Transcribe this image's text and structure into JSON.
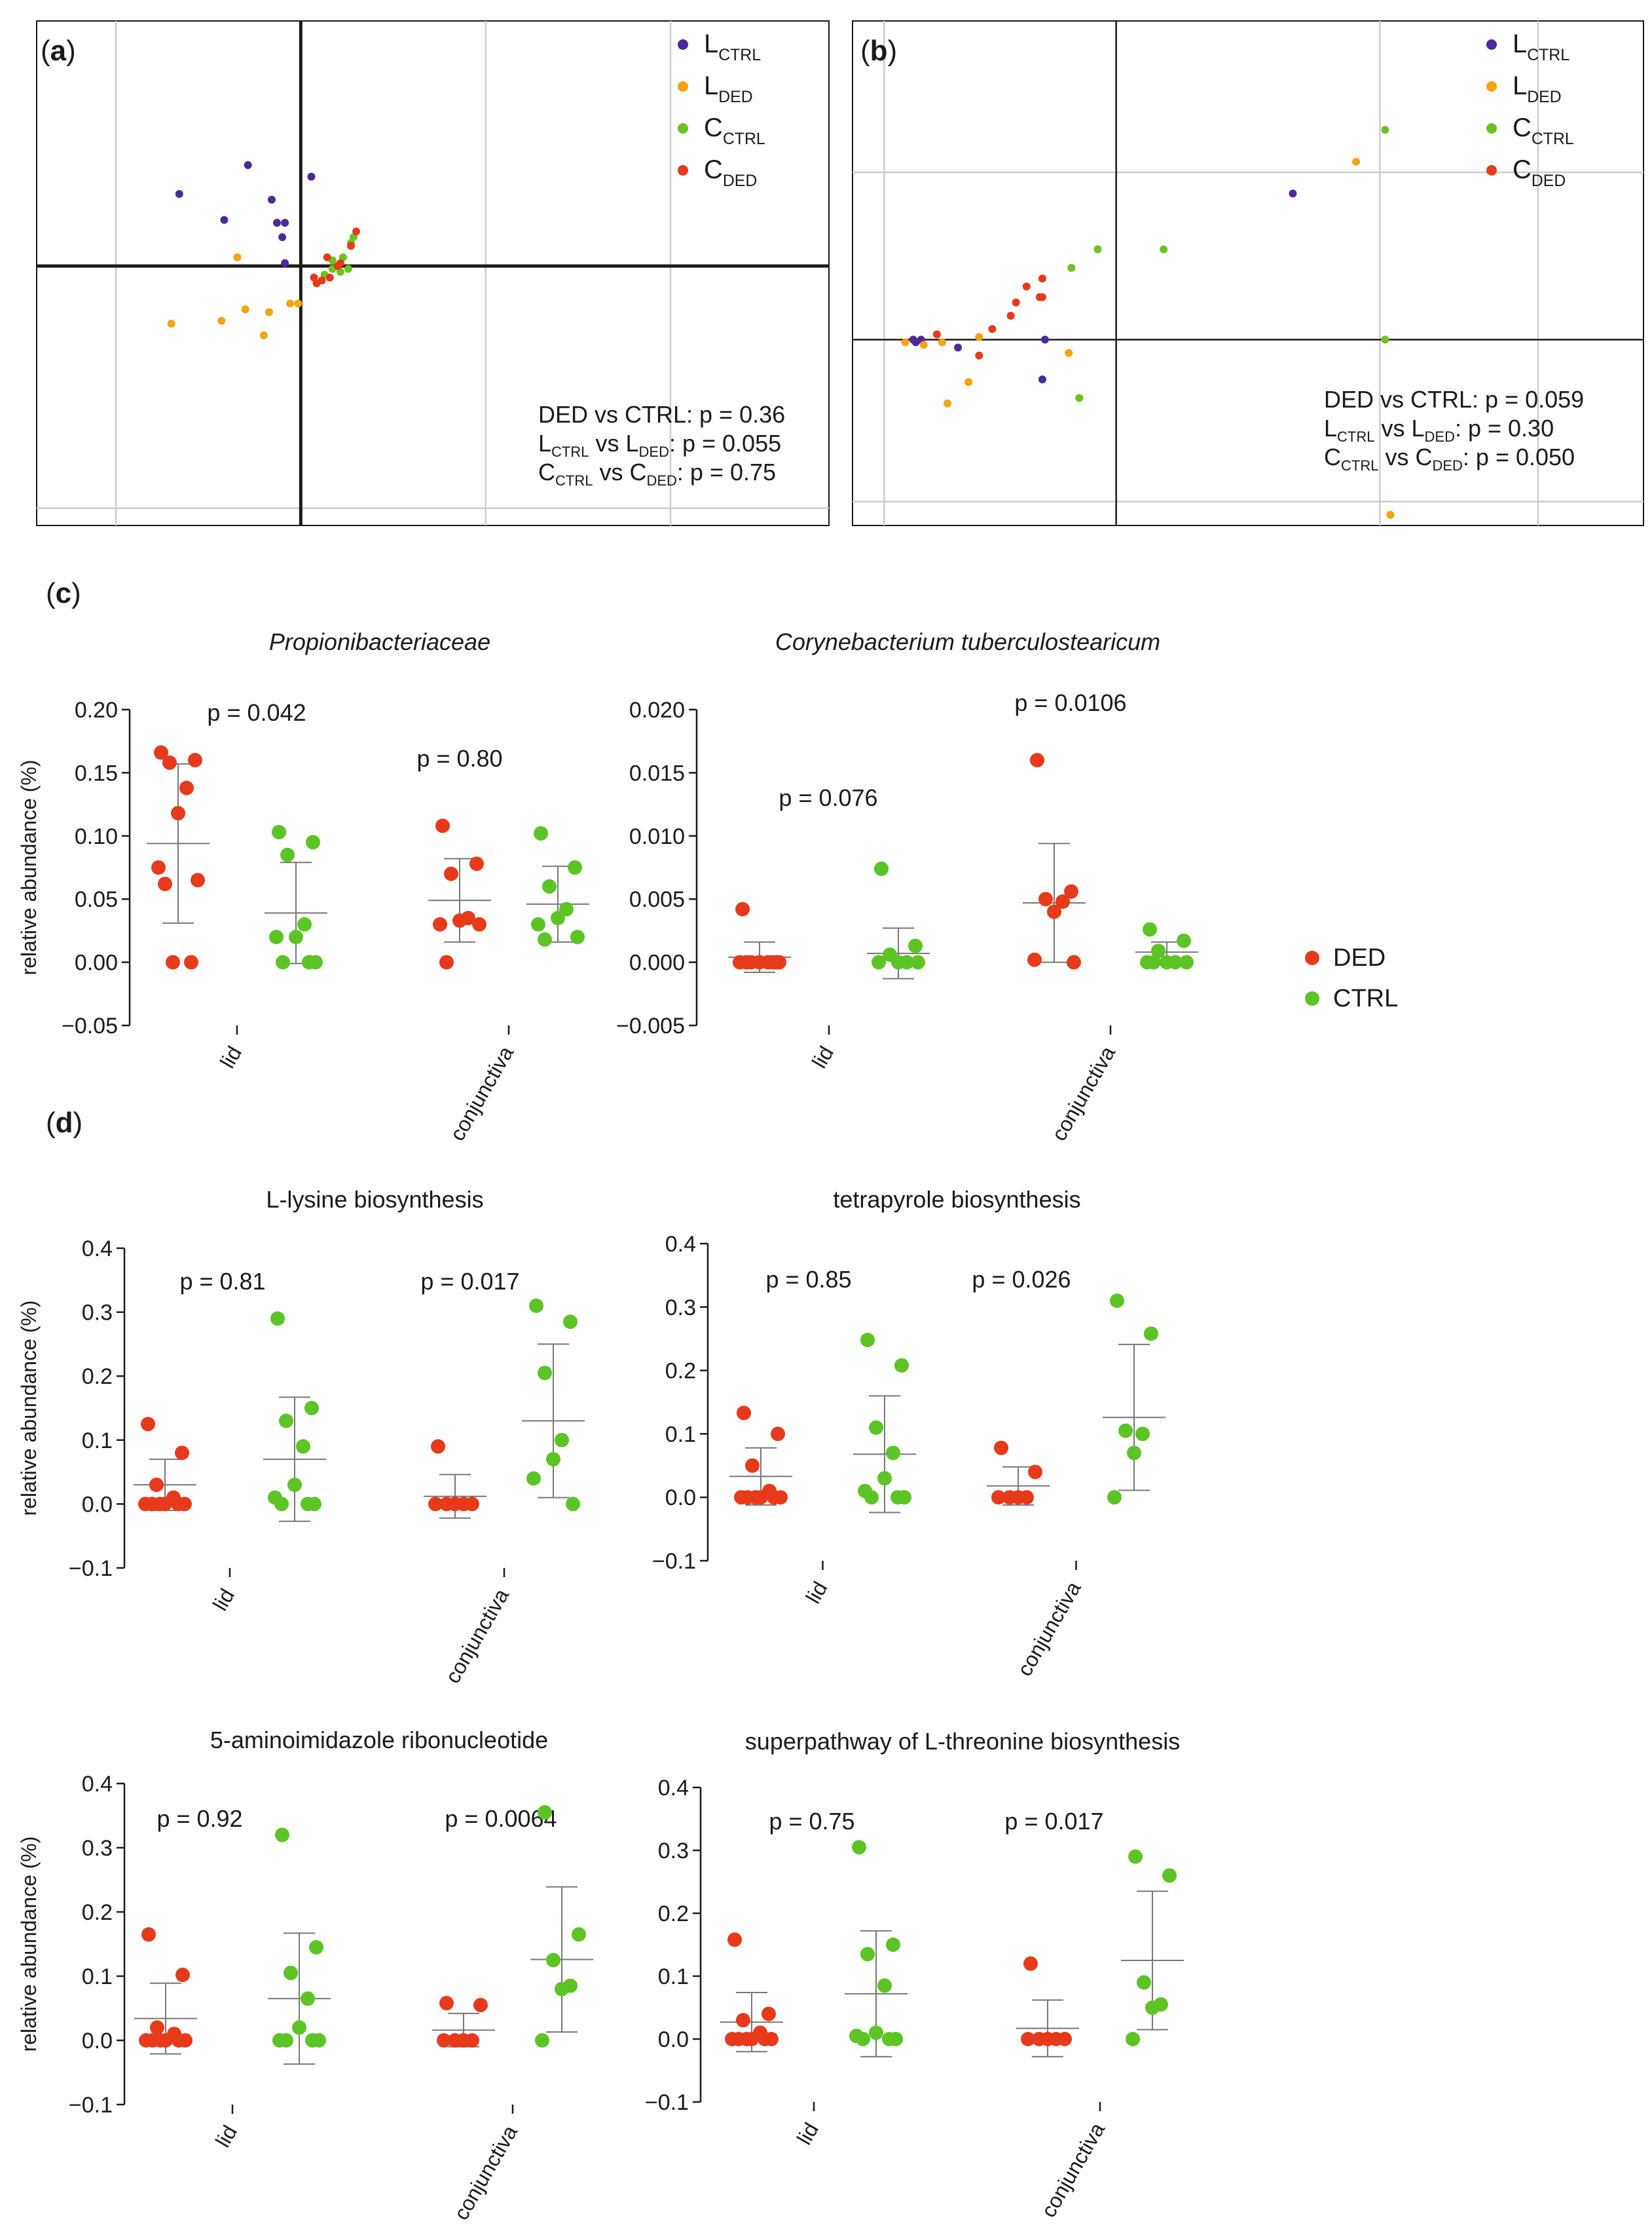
{
  "colors": {
    "l_ctrl": "#4b2a99",
    "l_ded": "#f5a312",
    "c_ctrl": "#6cc21f",
    "c_ded": "#e63a1a",
    "ded": "#e63a1a",
    "ctrl": "#5cc424",
    "axis": "#1a1a1a",
    "grid": "#cccccc"
  },
  "pcoa_legend": [
    {
      "key": "l_ctrl",
      "main": "L",
      "sub": "CTRL"
    },
    {
      "key": "l_ded",
      "main": "L",
      "sub": "DED"
    },
    {
      "key": "c_ctrl",
      "main": "C",
      "sub": "CTRL"
    },
    {
      "key": "c_ded",
      "main": "C",
      "sub": "DED"
    }
  ],
  "dot_legend": [
    {
      "key": "ded",
      "label": "DED"
    },
    {
      "key": "ctrl",
      "label": "CTRL"
    }
  ],
  "section_labels": {
    "c": "c",
    "d": "d"
  },
  "chart_data": [
    {
      "id": "a",
      "panel_label": "a",
      "type": "scatter",
      "xlim": [
        -1.0,
        2.0
      ],
      "ylim": [
        -0.9,
        0.85
      ],
      "grid_x": [
        -0.7,
        0.7,
        1.4
      ],
      "grid_y": [
        -0.84
      ],
      "series": [
        {
          "key": "l_ctrl",
          "points": [
            [
              -0.46,
              0.25
            ],
            [
              -0.2,
              0.35
            ],
            [
              -0.29,
              0.16
            ],
            [
              -0.11,
              0.23
            ],
            [
              -0.09,
              0.15
            ],
            [
              -0.06,
              0.15
            ],
            [
              -0.07,
              0.1
            ],
            [
              0.04,
              0.31
            ],
            [
              -0.06,
              0.01
            ]
          ]
        },
        {
          "key": "l_ded",
          "points": [
            [
              -0.49,
              -0.2
            ],
            [
              -0.3,
              -0.19
            ],
            [
              -0.21,
              -0.15
            ],
            [
              -0.14,
              -0.24
            ],
            [
              -0.12,
              -0.16
            ],
            [
              -0.04,
              -0.13
            ],
            [
              -0.01,
              -0.13
            ],
            [
              -0.24,
              0.03
            ]
          ]
        },
        {
          "key": "c_ctrl",
          "points": [
            [
              0.19,
              0.08
            ],
            [
              0.2,
              0.1
            ],
            [
              0.16,
              0.03
            ],
            [
              0.18,
              -0.01
            ],
            [
              0.15,
              -0.02
            ],
            [
              0.12,
              -0.01
            ],
            [
              0.12,
              0.02
            ],
            [
              0.09,
              -0.03
            ]
          ]
        },
        {
          "key": "c_ded",
          "points": [
            [
              0.21,
              0.12
            ],
            [
              0.19,
              0.07
            ],
            [
              0.1,
              0.03
            ],
            [
              0.14,
              0.0
            ],
            [
              0.15,
              0.01
            ],
            [
              0.11,
              -0.04
            ],
            [
              0.06,
              -0.06
            ],
            [
              0.08,
              -0.05
            ],
            [
              0.05,
              -0.04
            ]
          ]
        }
      ],
      "annotations": [
        [
          {
            "t": "DED vs CTRL: p = 0.36"
          }
        ],
        [
          {
            "t": "L"
          },
          {
            "t": "CTRL",
            "sub": true
          },
          {
            "t": " vs L"
          },
          {
            "t": "DED",
            "sub": true
          },
          {
            "t": ": p = 0.055"
          }
        ],
        [
          {
            "t": "C"
          },
          {
            "t": "CTRL",
            "sub": true
          },
          {
            "t": " vs C"
          },
          {
            "t": "DED",
            "sub": true
          },
          {
            "t": ": p = 0.75"
          }
        ]
      ]
    },
    {
      "id": "b",
      "panel_label": "b",
      "type": "scatter",
      "xlim": [
        -1.0,
        2.0
      ],
      "ylim": [
        -0.7,
        1.2
      ],
      "grid_x": [
        -0.88,
        1.0,
        1.6
      ],
      "grid_y": [
        0.63,
        -0.61
      ],
      "series": [
        {
          "key": "l_ctrl",
          "points": [
            [
              -0.77,
              0.0
            ],
            [
              -0.76,
              -0.01
            ],
            [
              -0.74,
              0.0
            ],
            [
              -0.6,
              -0.03
            ],
            [
              -0.27,
              0.0
            ],
            [
              -0.28,
              -0.15
            ],
            [
              0.67,
              0.55
            ]
          ]
        },
        {
          "key": "l_ded",
          "points": [
            [
              -0.8,
              -0.01
            ],
            [
              -0.73,
              -0.02
            ],
            [
              -0.66,
              -0.01
            ],
            [
              -0.64,
              -0.24
            ],
            [
              -0.56,
              -0.16
            ],
            [
              -0.52,
              0.01
            ],
            [
              -0.18,
              -0.05
            ],
            [
              0.91,
              0.67
            ],
            [
              1.04,
              -0.66
            ]
          ]
        },
        {
          "key": "c_ctrl",
          "points": [
            [
              -0.17,
              0.27
            ],
            [
              -0.07,
              0.34
            ],
            [
              0.18,
              0.34
            ],
            [
              1.02,
              0.79
            ],
            [
              1.02,
              0.0
            ],
            [
              -0.14,
              -0.22
            ]
          ]
        },
        {
          "key": "c_ded",
          "points": [
            [
              -0.68,
              0.02
            ],
            [
              -0.52,
              -0.06
            ],
            [
              -0.47,
              0.04
            ],
            [
              -0.4,
              0.09
            ],
            [
              -0.38,
              0.14
            ],
            [
              -0.34,
              0.2
            ],
            [
              -0.28,
              0.23
            ],
            [
              -0.28,
              0.16
            ],
            [
              -0.29,
              0.16
            ]
          ]
        }
      ],
      "annotations": [
        [
          {
            "t": "DED vs CTRL: p = 0.059"
          }
        ],
        [
          {
            "t": "L"
          },
          {
            "t": "CTRL",
            "sub": true
          },
          {
            "t": " vs L"
          },
          {
            "t": "DED",
            "sub": true
          },
          {
            "t": ": p = 0.30"
          }
        ],
        [
          {
            "t": "C"
          },
          {
            "t": "CTRL",
            "sub": true
          },
          {
            "t": " vs C"
          },
          {
            "t": "DED",
            "sub": true
          },
          {
            "t": ": p = 0.050"
          }
        ]
      ]
    },
    {
      "id": "c1",
      "type": "scatter",
      "title": "Propionibacteriaceae",
      "italic": true,
      "ylabel": "relative abundance (%)",
      "ylim": [
        -0.05,
        0.2
      ],
      "yticks": [
        "0.20",
        "0.15",
        "0.10",
        "0.05",
        "0.00",
        "−0.05"
      ],
      "categories": [
        "lid",
        "conjunctiva"
      ],
      "p_values": [
        "p = 0.042",
        "p = 0.80"
      ],
      "groups": [
        {
          "cat": 0,
          "key": "ded",
          "mean": 0.094,
          "sd": 0.063,
          "values": [
            0.166,
            0.16,
            0.158,
            0.138,
            0.118,
            0.075,
            0.065,
            0.062,
            0.0,
            0.0
          ]
        },
        {
          "cat": 0,
          "key": "ctrl",
          "mean": 0.039,
          "sd": 0.04,
          "values": [
            0.103,
            0.095,
            0.085,
            0.03,
            0.02,
            0.02,
            0.0,
            0.0,
            0.0
          ]
        },
        {
          "cat": 1,
          "key": "ded",
          "mean": 0.049,
          "sd": 0.033,
          "values": [
            0.108,
            0.078,
            0.07,
            0.035,
            0.033,
            0.03,
            0.03,
            0.0
          ]
        },
        {
          "cat": 1,
          "key": "ctrl",
          "mean": 0.046,
          "sd": 0.03,
          "values": [
            0.102,
            0.075,
            0.06,
            0.042,
            0.035,
            0.03,
            0.02,
            0.018
          ]
        }
      ]
    },
    {
      "id": "c2",
      "type": "scatter",
      "title": "Corynebacterium tuberculostearicum",
      "italic": true,
      "ylim": [
        -0.005,
        0.02
      ],
      "yticks": [
        "0.020",
        "0.015",
        "0.010",
        "0.005",
        "0.000",
        "−0.005"
      ],
      "categories": [
        "lid",
        "conjunctiva"
      ],
      "p_values": [
        "p = 0.076",
        "p = 0.0106"
      ],
      "groups": [
        {
          "cat": 0,
          "key": "ded",
          "mean": 0.0004,
          "sd": 0.0012,
          "values": [
            0.0042,
            0.0,
            0.0,
            0.0,
            0.0,
            0.0,
            0.0,
            0.0,
            0.0
          ]
        },
        {
          "cat": 0,
          "key": "ctrl",
          "mean": 0.0007,
          "sd": 0.002,
          "values": [
            0.0074,
            0.0013,
            0.0006,
            0.0,
            0.0,
            0.0,
            0.0
          ]
        },
        {
          "cat": 1,
          "key": "ded",
          "mean": 0.0047,
          "sd": 0.0047,
          "values": [
            0.016,
            0.0056,
            0.005,
            0.0048,
            0.004,
            0.0002,
            0.0
          ]
        },
        {
          "cat": 1,
          "key": "ctrl",
          "mean": 0.0008,
          "sd": 0.0008,
          "values": [
            0.0026,
            0.0017,
            0.0009,
            0.0,
            0.0,
            0.0,
            0.0,
            0.0
          ]
        }
      ]
    },
    {
      "id": "d1",
      "type": "scatter",
      "title": "L-lysine biosynthesis",
      "italic": false,
      "ylabel": "relative abundance (%)",
      "ylim": [
        -0.1,
        0.4
      ],
      "yticks": [
        "0.4",
        "0.3",
        "0.2",
        "0.1",
        "0.0",
        "−0.1"
      ],
      "categories": [
        "lid",
        "conjunctiva"
      ],
      "p_values": [
        "p = 0.81",
        "p = 0.017"
      ],
      "groups": [
        {
          "cat": 0,
          "key": "ded",
          "mean": 0.03,
          "sd": 0.04,
          "values": [
            0.125,
            0.08,
            0.03,
            0.01,
            0.0,
            0.0,
            0.0,
            0.0,
            0.0,
            0.0
          ]
        },
        {
          "cat": 0,
          "key": "ctrl",
          "mean": 0.07,
          "sd": 0.097,
          "values": [
            0.29,
            0.15,
            0.13,
            0.09,
            0.03,
            0.01,
            0.0,
            0.0,
            0.0
          ]
        },
        {
          "cat": 1,
          "key": "ded",
          "mean": 0.012,
          "sd": 0.034,
          "values": [
            0.09,
            0.0,
            0.0,
            0.0,
            0.0,
            0.0
          ]
        },
        {
          "cat": 1,
          "key": "ctrl",
          "mean": 0.13,
          "sd": 0.12,
          "values": [
            0.31,
            0.285,
            0.205,
            0.1,
            0.07,
            0.04,
            0.0
          ]
        }
      ]
    },
    {
      "id": "d2",
      "type": "scatter",
      "title": "tetrapyrole biosynthesis",
      "italic": false,
      "ylim": [
        -0.1,
        0.4
      ],
      "yticks": [
        "0.4",
        "0.3",
        "0.2",
        "0.1",
        "0.0",
        "−0.1"
      ],
      "categories": [
        "lid",
        "conjunctiva"
      ],
      "p_values": [
        "p = 0.85",
        "p = 0.026"
      ],
      "groups": [
        {
          "cat": 0,
          "key": "ded",
          "mean": 0.033,
          "sd": 0.045,
          "values": [
            0.133,
            0.1,
            0.05,
            0.01,
            0.0,
            0.0,
            0.0,
            0.0,
            0.0,
            0.0
          ]
        },
        {
          "cat": 0,
          "key": "ctrl",
          "mean": 0.068,
          "sd": 0.092,
          "values": [
            0.248,
            0.208,
            0.11,
            0.07,
            0.03,
            0.01,
            0.0,
            0.0,
            0.0
          ]
        },
        {
          "cat": 1,
          "key": "ded",
          "mean": 0.018,
          "sd": 0.03,
          "values": [
            0.078,
            0.04,
            0.0,
            0.0,
            0.0,
            0.0
          ]
        },
        {
          "cat": 1,
          "key": "ctrl",
          "mean": 0.126,
          "sd": 0.115,
          "values": [
            0.31,
            0.258,
            0.105,
            0.1,
            0.07,
            0.0
          ]
        }
      ]
    },
    {
      "id": "d3",
      "type": "scatter",
      "title": "5-aminoimidazole ribonucleotide",
      "italic": false,
      "ylabel": "relative abundance (%)",
      "ylim": [
        -0.1,
        0.4
      ],
      "yticks": [
        "0.4",
        "0.3",
        "0.2",
        "0.1",
        "0.0",
        "−0.1"
      ],
      "categories": [
        "lid",
        "conjunctiva"
      ],
      "p_values": [
        "p = 0.92",
        "p = 0.0064"
      ],
      "groups": [
        {
          "cat": 0,
          "key": "ded",
          "mean": 0.034,
          "sd": 0.055,
          "values": [
            0.165,
            0.102,
            0.02,
            0.01,
            0.0,
            0.0,
            0.0,
            0.0,
            0.0,
            0.0
          ]
        },
        {
          "cat": 0,
          "key": "ctrl",
          "mean": 0.065,
          "sd": 0.102,
          "values": [
            0.32,
            0.145,
            0.105,
            0.065,
            0.02,
            0.0,
            0.0,
            0.0,
            0.0
          ]
        },
        {
          "cat": 1,
          "key": "ded",
          "mean": 0.016,
          "sd": 0.026,
          "values": [
            0.058,
            0.055,
            0.0,
            0.0,
            0.0,
            0.0
          ]
        },
        {
          "cat": 1,
          "key": "ctrl",
          "mean": 0.126,
          "sd": 0.113,
          "values": [
            0.355,
            0.165,
            0.125,
            0.085,
            0.08,
            0.0
          ]
        }
      ]
    },
    {
      "id": "d4",
      "type": "scatter",
      "title": "superpathway of L-threonine biosynthesis",
      "italic": false,
      "ylim": [
        -0.1,
        0.4
      ],
      "yticks": [
        "0.4",
        "0.3",
        "0.2",
        "0.1",
        "0.0",
        "−0.1"
      ],
      "categories": [
        "lid",
        "conjunctiva"
      ],
      "p_values": [
        "p = 0.75",
        "p = 0.017"
      ],
      "groups": [
        {
          "cat": 0,
          "key": "ded",
          "mean": 0.027,
          "sd": 0.047,
          "values": [
            0.158,
            0.04,
            0.03,
            0.01,
            0.0,
            0.0,
            0.0,
            0.0,
            0.0,
            0.0
          ]
        },
        {
          "cat": 0,
          "key": "ctrl",
          "mean": 0.072,
          "sd": 0.1,
          "values": [
            0.305,
            0.15,
            0.135,
            0.085,
            0.01,
            0.005,
            0.0,
            0.0,
            0.0
          ]
        },
        {
          "cat": 1,
          "key": "ded",
          "mean": 0.017,
          "sd": 0.045,
          "values": [
            0.12,
            0.0,
            0.0,
            0.0,
            0.0,
            0.0
          ]
        },
        {
          "cat": 1,
          "key": "ctrl",
          "mean": 0.125,
          "sd": 0.11,
          "values": [
            0.29,
            0.26,
            0.09,
            0.055,
            0.05,
            0.0
          ]
        }
      ]
    }
  ]
}
